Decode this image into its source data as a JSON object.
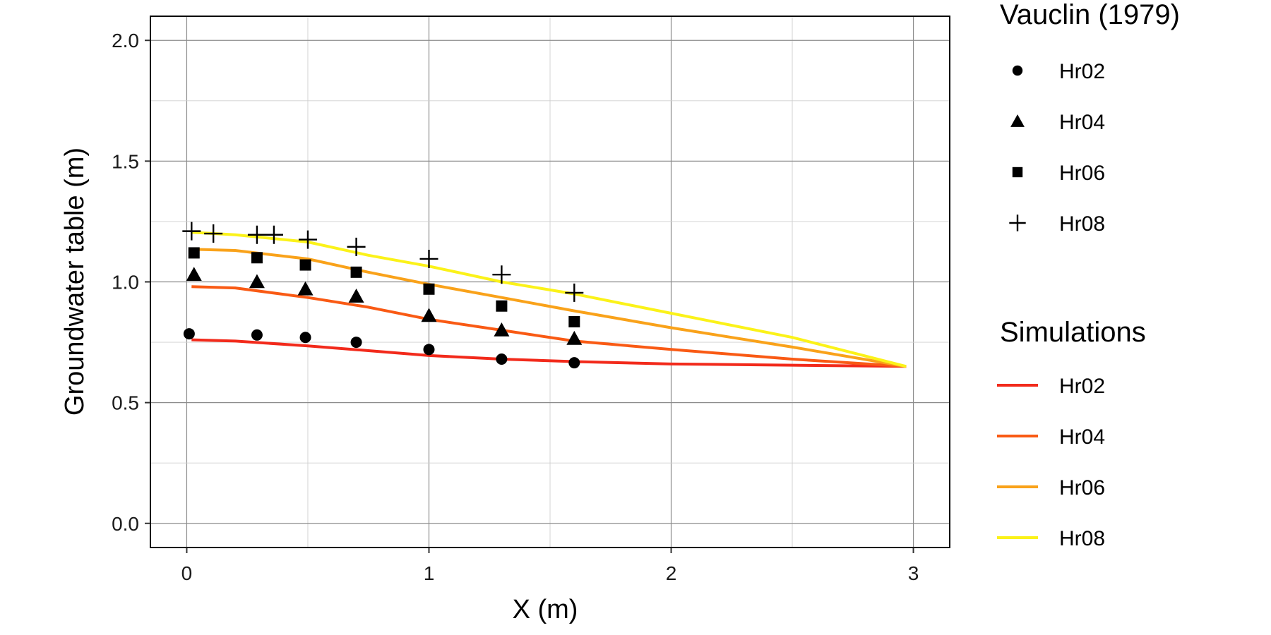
{
  "chart_data": {
    "type": "scatter",
    "xlabel": "X (m)",
    "ylabel": "Groundwater table (m)",
    "xlim": [
      -0.15,
      3.15
    ],
    "ylim": [
      -0.1,
      2.1
    ],
    "x_ticks": [
      "0",
      "1",
      "2",
      "3"
    ],
    "y_ticks": [
      "0.0",
      "0.5",
      "1.0",
      "1.5",
      "2.0"
    ],
    "grid": true,
    "legend_placement": "right",
    "observed": {
      "legend_title": "Vauclin (1979)",
      "series": [
        {
          "name": "Hr02",
          "marker": "circle",
          "x": [
            0.01,
            0.29,
            0.49,
            0.7,
            1.0,
            1.3,
            1.6
          ],
          "y": [
            0.785,
            0.78,
            0.77,
            0.75,
            0.72,
            0.68,
            0.665
          ]
        },
        {
          "name": "Hr04",
          "marker": "triangle",
          "x": [
            0.03,
            0.29,
            0.49,
            0.7,
            1.0,
            1.3,
            1.6
          ],
          "y": [
            1.03,
            1.0,
            0.97,
            0.94,
            0.86,
            0.8,
            0.765
          ]
        },
        {
          "name": "Hr06",
          "marker": "square",
          "x": [
            0.03,
            0.29,
            0.49,
            0.7,
            1.0,
            1.3,
            1.6
          ],
          "y": [
            1.12,
            1.1,
            1.07,
            1.04,
            0.97,
            0.9,
            0.835
          ]
        },
        {
          "name": "Hr08",
          "marker": "plus",
          "x": [
            0.02,
            0.11,
            0.29,
            0.36,
            0.5,
            0.7,
            1.0,
            1.3,
            1.6
          ],
          "y": [
            1.21,
            1.2,
            1.195,
            1.195,
            1.175,
            1.145,
            1.095,
            1.03,
            0.955
          ]
        }
      ]
    },
    "simulated": {
      "legend_title": "Simulations",
      "series": [
        {
          "name": "Hr02",
          "color": "#f22a1b",
          "x": [
            0.02,
            0.2,
            0.5,
            0.75,
            1.0,
            1.3,
            1.6,
            2.0,
            2.5,
            2.97
          ],
          "y": [
            0.76,
            0.755,
            0.735,
            0.715,
            0.695,
            0.68,
            0.67,
            0.66,
            0.655,
            0.65
          ]
        },
        {
          "name": "Hr04",
          "color": "#f95a14",
          "x": [
            0.02,
            0.2,
            0.5,
            0.75,
            1.0,
            1.3,
            1.6,
            2.0,
            2.5,
            2.97
          ],
          "y": [
            0.98,
            0.975,
            0.935,
            0.895,
            0.845,
            0.8,
            0.755,
            0.72,
            0.68,
            0.65
          ]
        },
        {
          "name": "Hr06",
          "color": "#f9a21a",
          "x": [
            0.02,
            0.2,
            0.5,
            0.75,
            1.0,
            1.3,
            1.6,
            2.0,
            2.5,
            2.97
          ],
          "y": [
            1.135,
            1.13,
            1.095,
            1.04,
            0.99,
            0.935,
            0.88,
            0.81,
            0.73,
            0.65
          ]
        },
        {
          "name": "Hr08",
          "color": "#fbf219",
          "x": [
            0.02,
            0.2,
            0.5,
            0.75,
            1.0,
            1.3,
            1.6,
            2.0,
            2.5,
            2.97
          ],
          "y": [
            1.205,
            1.195,
            1.165,
            1.11,
            1.065,
            1.0,
            0.95,
            0.87,
            0.77,
            0.65
          ]
        }
      ]
    }
  }
}
